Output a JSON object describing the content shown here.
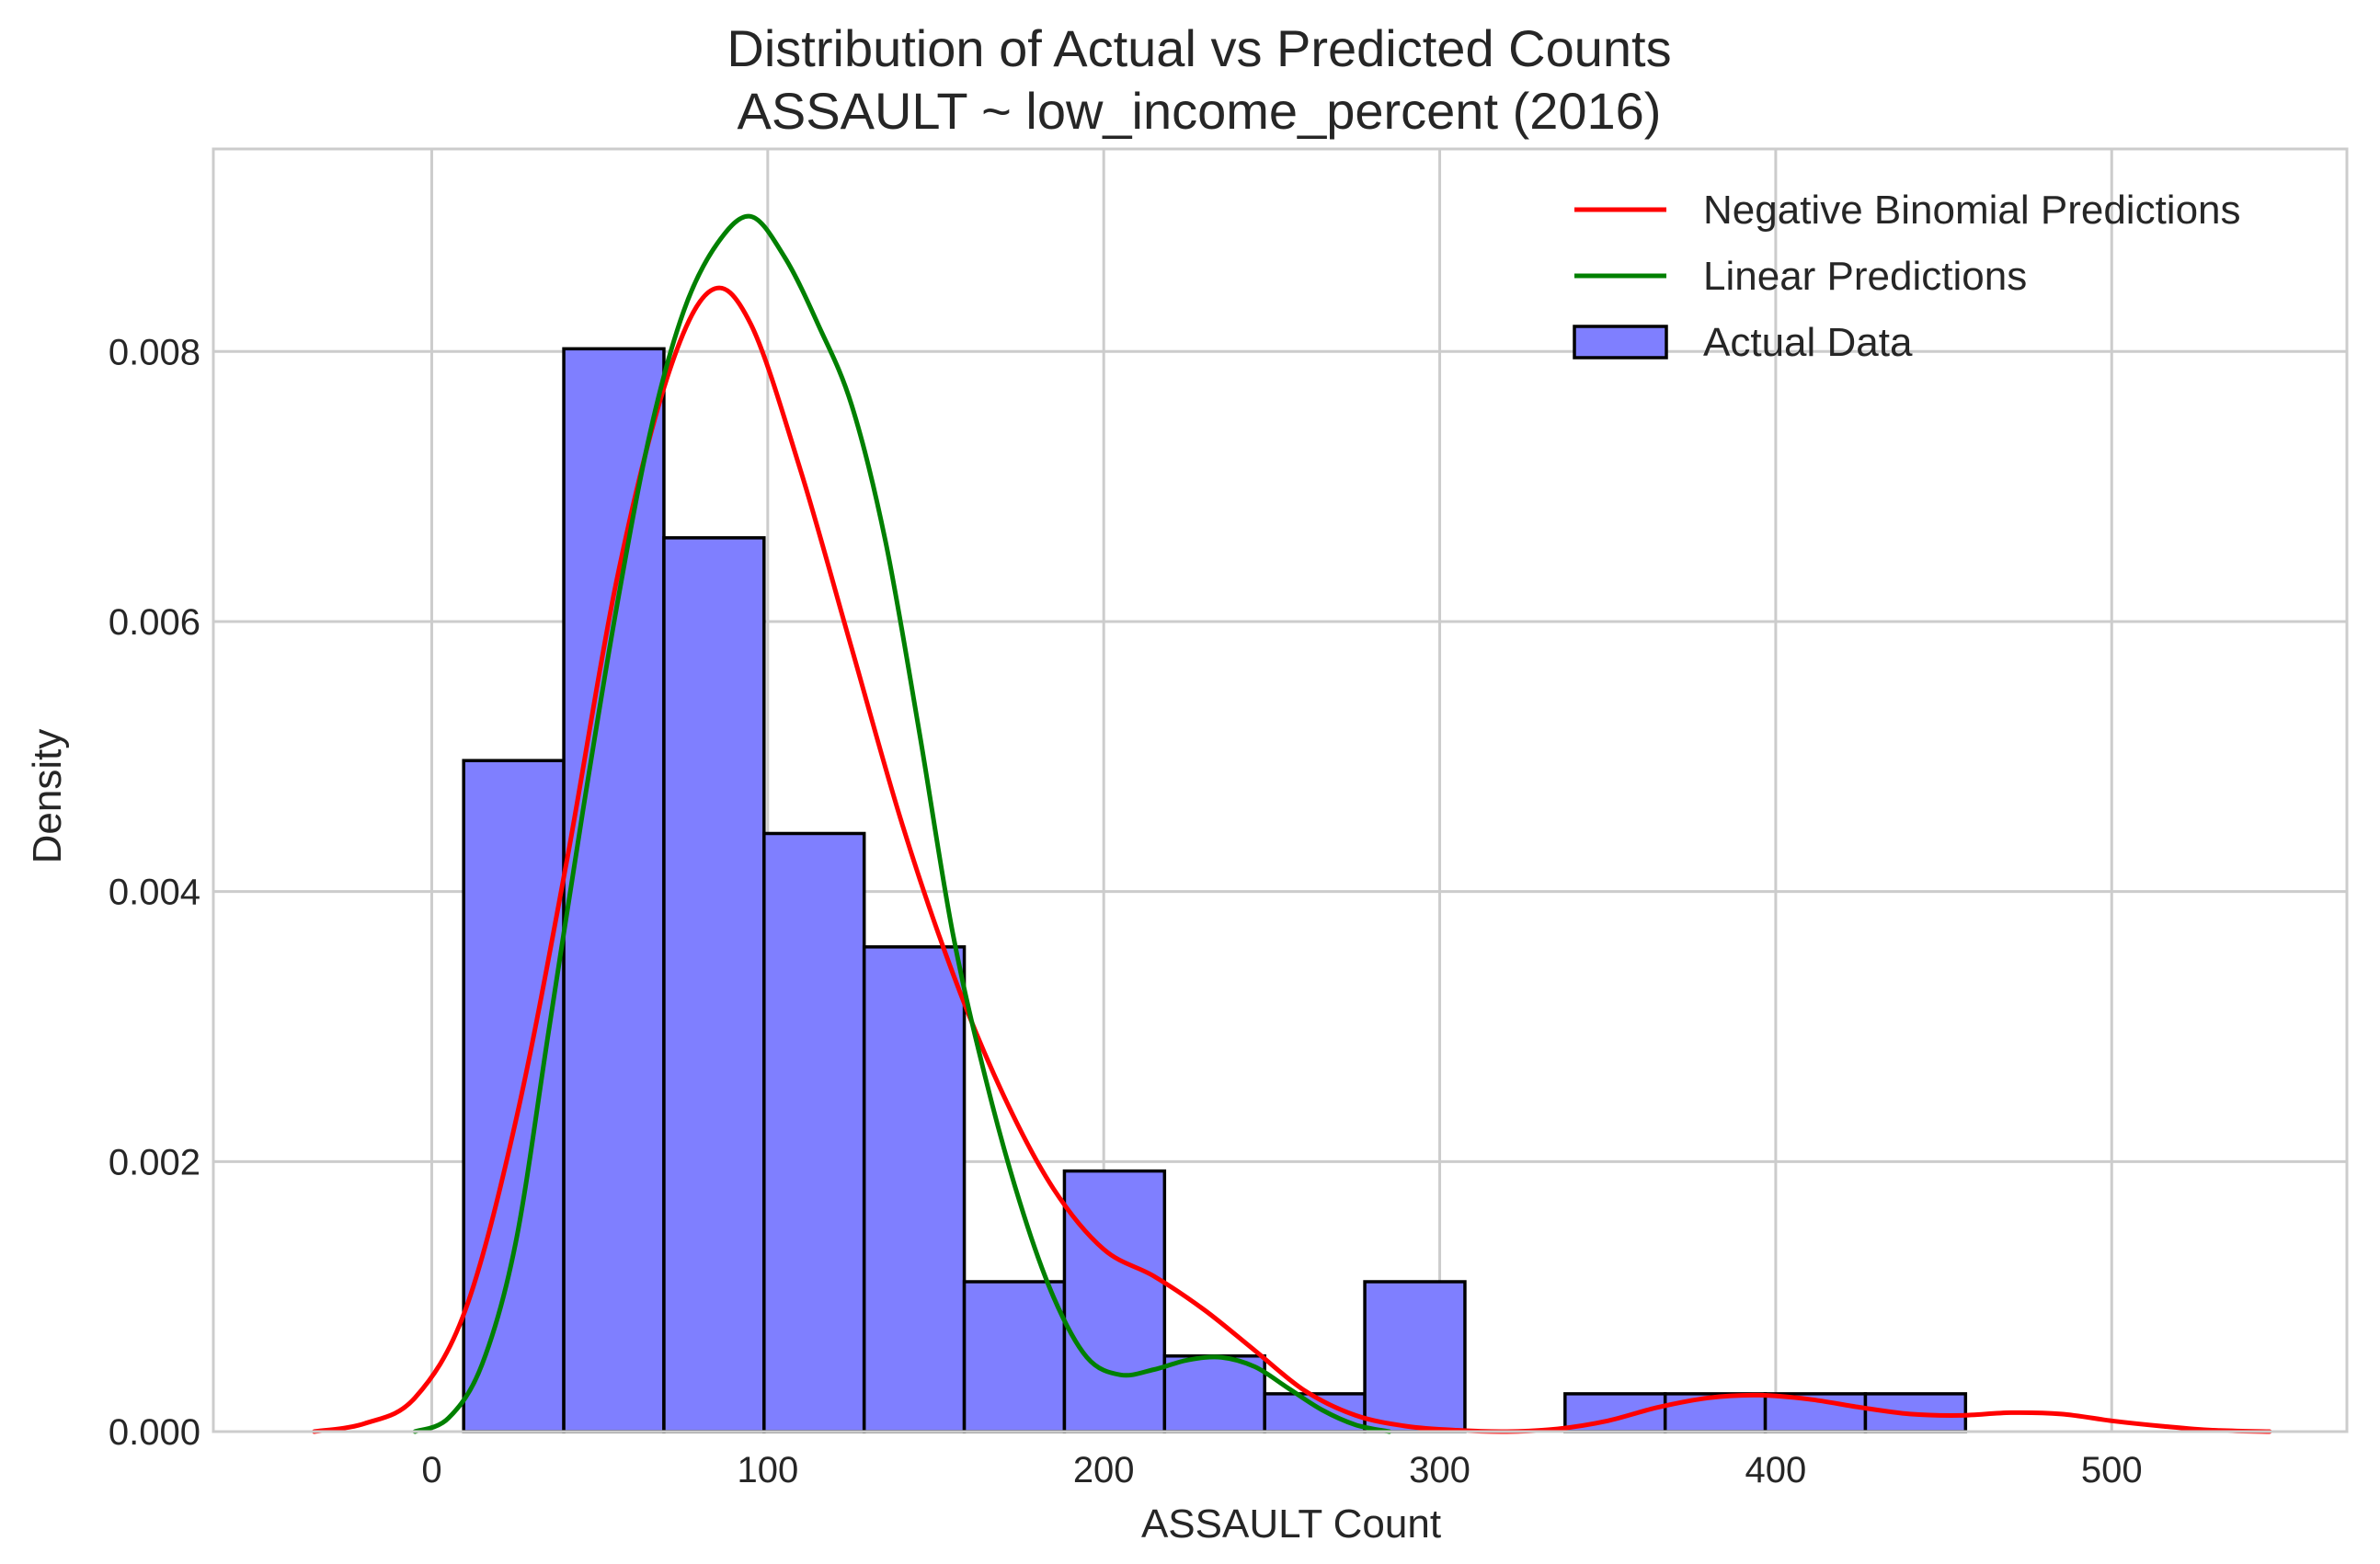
{
  "chart_data": {
    "type": "bar",
    "title": "Distribution of Actual vs Predicted Counts",
    "subtitle": "ASSAULT ~ low_income_percent (2016)",
    "xlabel": "ASSAULT Count",
    "ylabel": "Density",
    "xlim": [
      -65,
      570
    ],
    "ylim": [
      0,
      0.0095
    ],
    "x_ticks": [
      0,
      100,
      200,
      300,
      400,
      500
    ],
    "x_tick_labels": [
      "0",
      "100",
      "200",
      "300",
      "400",
      "500"
    ],
    "y_ticks": [
      0.0,
      0.002,
      0.004,
      0.006,
      0.008
    ],
    "y_tick_labels": [
      "0.000",
      "0.002",
      "0.004",
      "0.006",
      "0.008"
    ],
    "grid": true,
    "legend_position": "top-right",
    "legend": [
      {
        "label": "Negative Binomial Predictions",
        "kind": "line",
        "color": "#ff0000"
      },
      {
        "label": "Linear Predictions",
        "kind": "line",
        "color": "#008000"
      },
      {
        "label": "Actual Data",
        "kind": "patch",
        "color": "#7f7fff"
      }
    ],
    "histogram": {
      "name": "Actual Data",
      "color": "#7f7fff",
      "edge_color": "#000000",
      "bins": [
        {
          "x0": 9.5,
          "x1": 39.3,
          "density": 0.00497
        },
        {
          "x0": 39.3,
          "x1": 69.1,
          "density": 0.00802
        },
        {
          "x0": 69.1,
          "x1": 98.9,
          "density": 0.00662
        },
        {
          "x0": 98.9,
          "x1": 128.7,
          "density": 0.00443
        },
        {
          "x0": 128.7,
          "x1": 158.5,
          "density": 0.00359
        },
        {
          "x0": 158.5,
          "x1": 188.3,
          "density": 0.00111
        },
        {
          "x0": 188.3,
          "x1": 218.1,
          "density": 0.00193
        },
        {
          "x0": 218.1,
          "x1": 247.9,
          "density": 0.00056
        },
        {
          "x0": 247.9,
          "x1": 277.7,
          "density": 0.00028
        },
        {
          "x0": 277.7,
          "x1": 307.5,
          "density": 0.00111
        },
        {
          "x0": 307.5,
          "x1": 337.3,
          "density": 0.0
        },
        {
          "x0": 337.3,
          "x1": 367.1,
          "density": 0.00028
        },
        {
          "x0": 367.1,
          "x1": 396.9,
          "density": 0.00028
        },
        {
          "x0": 396.9,
          "x1": 426.7,
          "density": 0.00028
        },
        {
          "x0": 426.7,
          "x1": 456.5,
          "density": 0.00028
        }
      ]
    },
    "series": [
      {
        "name": "Negative Binomial Predictions",
        "color": "#ff0000",
        "x": [
          -35,
          -20,
          -5,
          10,
          25,
          40,
          55,
          70,
          83,
          95,
          110,
          125,
          140,
          155,
          170,
          185,
          200,
          215,
          230,
          245,
          260,
          275,
          290,
          305,
          320,
          335,
          350,
          365,
          380,
          395,
          410,
          425,
          440,
          455,
          470,
          485,
          500,
          515,
          530,
          547
        ],
        "y": [
          0.0,
          6e-05,
          0.00025,
          0.0009,
          0.0023,
          0.0042,
          0.0063,
          0.0078,
          0.00845,
          0.0082,
          0.0071,
          0.0058,
          0.0045,
          0.0034,
          0.0025,
          0.0018,
          0.00135,
          0.00115,
          0.0009,
          0.0006,
          0.0003,
          0.00012,
          4e-05,
          1e-05,
          0.0,
          2e-05,
          8e-05,
          0.00018,
          0.00025,
          0.00027,
          0.00024,
          0.00018,
          0.00013,
          0.00012,
          0.00014,
          0.00013,
          8e-05,
          4e-05,
          1e-05,
          0.0
        ]
      },
      {
        "name": "Linear Predictions",
        "color": "#008000",
        "x": [
          -5,
          5,
          15,
          25,
          35,
          45,
          55,
          65,
          75,
          85,
          95,
          105,
          115,
          125,
          135,
          145,
          155,
          165,
          175,
          185,
          195,
          205,
          215,
          225,
          235,
          245,
          255,
          265,
          275,
          285
        ],
        "y": [
          0.0,
          0.0001,
          0.0005,
          0.0014,
          0.003,
          0.0046,
          0.0061,
          0.0074,
          0.0083,
          0.0088,
          0.009,
          0.0087,
          0.0082,
          0.0076,
          0.0066,
          0.0052,
          0.0037,
          0.0026,
          0.0017,
          0.001,
          0.00055,
          0.00042,
          0.00046,
          0.00053,
          0.00055,
          0.00048,
          0.00032,
          0.00016,
          5e-05,
          0.0
        ]
      }
    ]
  }
}
